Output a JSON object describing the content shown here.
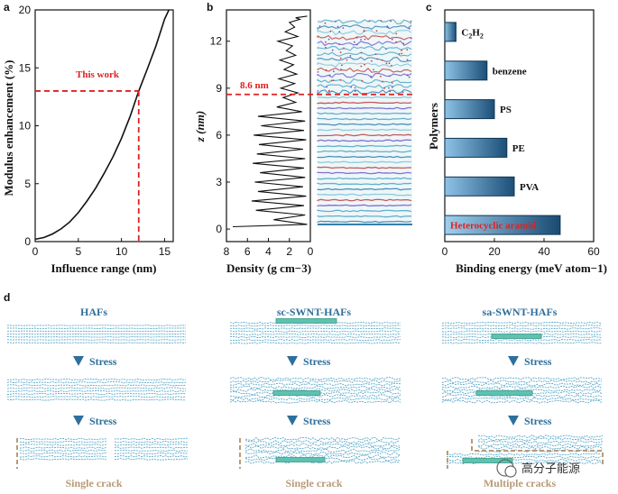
{
  "panels": {
    "a": {
      "letter": "a",
      "chart_data": {
        "type": "line",
        "title": "",
        "xlabel": "Influence range (nm)",
        "ylabel": "Modulus enhancement (%)",
        "xlim": [
          0,
          16
        ],
        "ylim": [
          0,
          20
        ],
        "xticks": [
          "0",
          "5",
          "10",
          "15"
        ],
        "yticks": [
          "0",
          "5",
          "10",
          "15",
          "20"
        ],
        "series": [
          {
            "name": "modulus curve",
            "x": [
              0,
              1,
              2,
              3,
              4,
              5,
              6,
              7,
              8,
              9,
              10,
              11,
              12,
              13,
              14,
              15,
              15.5
            ],
            "y": [
              0.2,
              0.35,
              0.65,
              1.1,
              1.7,
              2.5,
              3.5,
              4.6,
              5.9,
              7.3,
              8.9,
              10.8,
              13.0,
              14.9,
              16.9,
              19.2,
              20.0
            ]
          }
        ],
        "annotation": {
          "label": "This work",
          "x": 12,
          "y": 13
        }
      }
    },
    "b": {
      "letter": "b",
      "chart_data": {
        "type": "line",
        "xlabel": "Density (g cm−3)",
        "ylabel": "z (nm)",
        "xlim": [
          8,
          0
        ],
        "ylim": [
          -0.8,
          14
        ],
        "xticks": [
          "8",
          "6",
          "4",
          "2",
          "0"
        ],
        "yticks": [
          "0",
          "3",
          "6",
          "9",
          "12"
        ],
        "series": [
          {
            "name": "density profile",
            "x": [
              7.4,
              0.3,
              3.5,
              0.5,
              5.2,
              0.6,
              5.6,
              0.4,
              5.0,
              0.7,
              5.3,
              0.5,
              4.8,
              0.6,
              5.5,
              0.5,
              5.1,
              0.7,
              4.9,
              0.4,
              5.4,
              0.6,
              4.7,
              0.5,
              5.0,
              0.8,
              3.2,
              1.4,
              2.6,
              1.2,
              2.8,
              1.5,
              3.0,
              1.3,
              2.5,
              1.6,
              2.9,
              1.4,
              2.3,
              1.7,
              3.1,
              1.2,
              2.4,
              1.5,
              2.0,
              1.0,
              1.4,
              0.3
            ],
            "y": [
              0.15,
              0.3,
              0.6,
              0.9,
              1.2,
              1.5,
              1.8,
              2.1,
              2.4,
              2.7,
              3.0,
              3.3,
              3.6,
              3.9,
              4.2,
              4.5,
              4.8,
              5.1,
              5.4,
              5.7,
              6.0,
              6.3,
              6.6,
              6.9,
              7.2,
              7.5,
              7.8,
              8.1,
              8.4,
              8.7,
              9.0,
              9.3,
              9.6,
              9.9,
              10.2,
              10.5,
              10.8,
              11.1,
              11.4,
              11.7,
              12.0,
              12.3,
              12.6,
              12.9,
              13.2,
              13.4,
              13.5,
              13.6
            ]
          }
        ],
        "annotation": {
          "label": "8.6 nm",
          "y": 8.6
        }
      }
    },
    "c": {
      "letter": "c",
      "chart_data": {
        "type": "bar",
        "orientation": "horizontal",
        "xlabel": "Binding energy (meV atom−1)",
        "ylabel": "Polymers",
        "xlim": [
          0,
          60
        ],
        "xticks": [
          "0",
          "20",
          "40",
          "60"
        ],
        "categories": [
          "C2H2",
          "benzene",
          "PS",
          "PE",
          "PVA",
          "Heterocyclic aramid"
        ],
        "values": [
          4.5,
          17,
          20,
          25,
          28,
          46.5
        ],
        "highlight": "Heterocyclic aramid",
        "category_labels": {
          "base": [
            "C",
            "H"
          ],
          "subs": [
            "2",
            "2"
          ]
        }
      }
    },
    "d": {
      "letter": "d",
      "columns": [
        {
          "title": "HAFs",
          "stress1": "Stress",
          "stress2": "Stress",
          "result": "Single crack"
        },
        {
          "title": "sc-SWNT-HAFs",
          "stress1": "Stress",
          "stress2": "Stress",
          "result": "Single crack"
        },
        {
          "title": "sa-SWNT-HAFs",
          "stress1": "Stress",
          "stress2": "Stress",
          "result": "Multiple cracks"
        }
      ]
    }
  },
  "watermark": "高分子能源",
  "colors": {
    "curve": "#111111",
    "dash": "#e02020",
    "bar_dark": "#1c4f78",
    "bar_light": "#8fc3e6",
    "fiber": "#5aa8c8",
    "swnt": "#5ec2b0",
    "title_blue": "#2f6f9b",
    "crack": "#b89a78"
  }
}
